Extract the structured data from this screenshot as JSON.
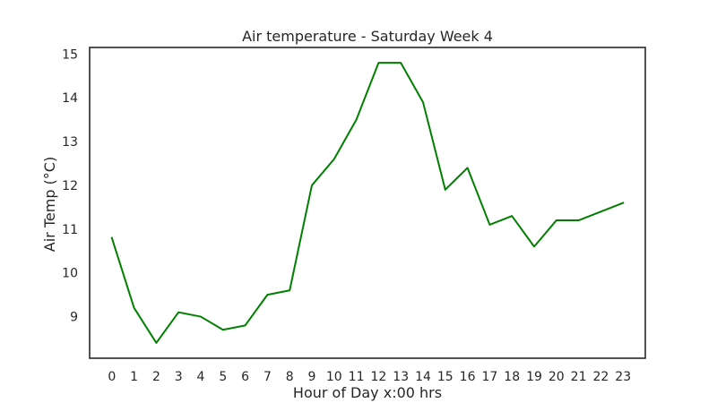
{
  "chart_data": {
    "type": "line",
    "title": "Air temperature - Saturday Week 4",
    "xlabel": "Hour of Day x:00 hrs",
    "ylabel": "Air Temp (°C)",
    "x": [
      0,
      1,
      2,
      3,
      4,
      5,
      6,
      7,
      8,
      9,
      10,
      11,
      12,
      13,
      14,
      15,
      16,
      17,
      18,
      19,
      20,
      21,
      22,
      23
    ],
    "x_tick_labels": [
      "0",
      "1",
      "2",
      "3",
      "4",
      "5",
      "6",
      "7",
      "8",
      "9",
      "10",
      "11",
      "12",
      "13",
      "14",
      "15",
      "16",
      "17",
      "18",
      "19",
      "20",
      "21",
      "22",
      "23"
    ],
    "y_ticks": [
      9,
      10,
      11,
      12,
      13,
      14,
      15
    ],
    "y_tick_labels": [
      "9",
      "10",
      "11",
      "12",
      "13",
      "14",
      "15"
    ],
    "xlim": [
      -1,
      24
    ],
    "ylim": [
      8.05,
      15.15
    ],
    "series": [
      {
        "color": "#008000",
        "values": [
          10.8,
          9.2,
          8.4,
          9.1,
          9.0,
          8.7,
          8.8,
          9.5,
          9.6,
          12.0,
          12.6,
          13.5,
          14.8,
          14.8,
          13.9,
          11.9,
          12.4,
          11.1,
          11.3,
          10.6,
          11.2,
          11.2,
          11.4,
          11.6
        ]
      }
    ],
    "grid": false,
    "legend": "none",
    "colors": {
      "axes_edge": "#262626",
      "text": "#262626",
      "background": "#ffffff"
    }
  }
}
